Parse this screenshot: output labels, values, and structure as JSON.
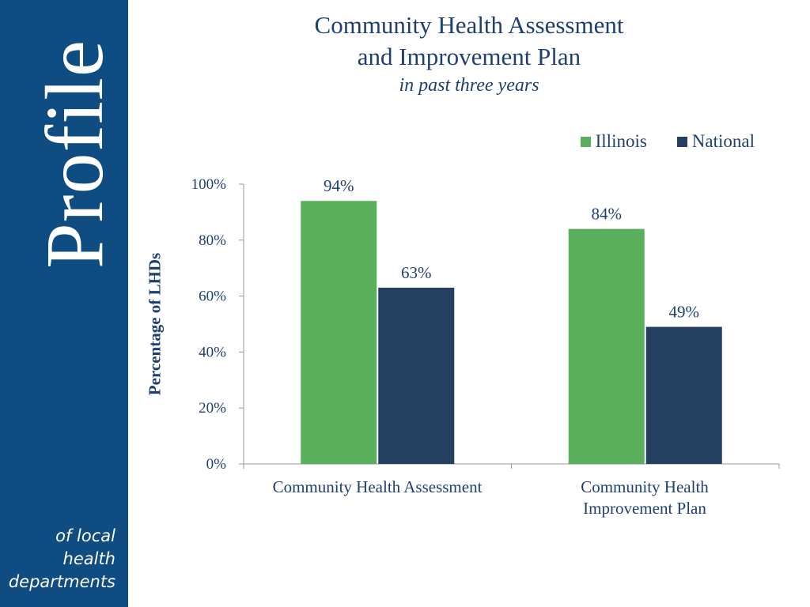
{
  "sidebar": {
    "brand": "Profile",
    "tagline": [
      "of local",
      "health",
      "departments"
    ]
  },
  "colors": {
    "sidebar": "#0f4c81",
    "text": "#1f3f73",
    "illinois": "#5aaf5a",
    "national": "#243f60"
  },
  "chart_data": {
    "type": "bar",
    "title": [
      "Community Health Assessment",
      "and Improvement Plan"
    ],
    "subtitle": "in past three years",
    "ylabel": "Percentage of LHDs",
    "categories": [
      [
        "Community Health Assessment"
      ],
      [
        "Community Health",
        "Improvement Plan"
      ]
    ],
    "series": [
      {
        "name": "Illinois",
        "values": [
          94,
          84
        ],
        "labels": [
          "94%",
          "84%"
        ]
      },
      {
        "name": "National",
        "values": [
          63,
          49
        ],
        "labels": [
          "63%",
          "49%"
        ]
      }
    ],
    "ylim": [
      0,
      100
    ],
    "yticks": [
      "0%",
      "20%",
      "40%",
      "60%",
      "80%",
      "100%"
    ],
    "grid": false,
    "legend": "top-right"
  }
}
